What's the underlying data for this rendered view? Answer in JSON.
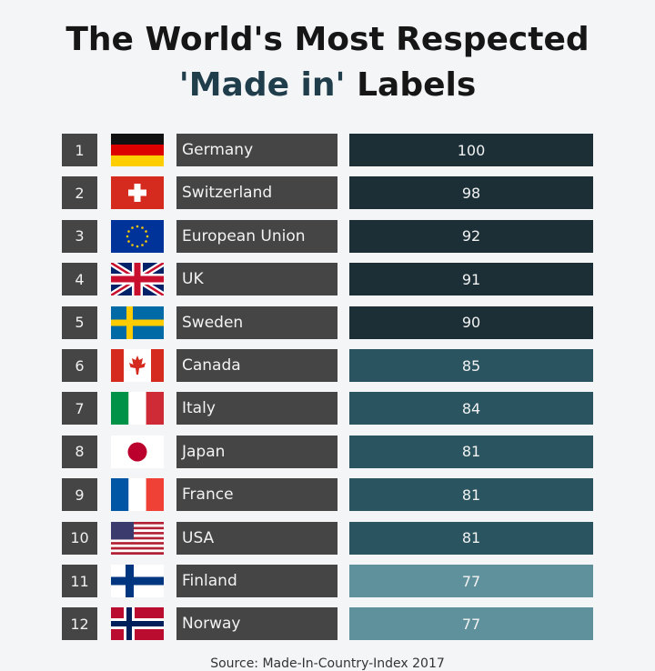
{
  "title_line1": "The World's Most Respected",
  "title_line2_accent": "'Made in'",
  "title_line2_rest": " Labels",
  "source": "Source: Made-In-Country-Index 2017",
  "colors": {
    "background": "#f4f5f7",
    "rank_box": "#454545",
    "country_box": "#454545",
    "score_high": "#1c2f37",
    "score_mid": "#2a5560",
    "score_low": "#5f919d"
  },
  "chart_data": {
    "type": "table",
    "columns": [
      "rank",
      "flag",
      "country",
      "score"
    ],
    "rows": [
      {
        "rank": "1",
        "country": "Germany",
        "score": "100",
        "flag": "germany-flag"
      },
      {
        "rank": "2",
        "country": "Switzerland",
        "score": "98",
        "flag": "switzerland-flag"
      },
      {
        "rank": "3",
        "country": "European Union",
        "score": "92",
        "flag": "eu-flag"
      },
      {
        "rank": "4",
        "country": "UK",
        "score": "91",
        "flag": "uk-flag"
      },
      {
        "rank": "5",
        "country": "Sweden",
        "score": "90",
        "flag": "sweden-flag"
      },
      {
        "rank": "6",
        "country": "Canada",
        "score": "85",
        "flag": "canada-flag"
      },
      {
        "rank": "7",
        "country": "Italy",
        "score": "84",
        "flag": "italy-flag"
      },
      {
        "rank": "8",
        "country": "Japan",
        "score": "81",
        "flag": "japan-flag"
      },
      {
        "rank": "9",
        "country": "France",
        "score": "81",
        "flag": "france-flag"
      },
      {
        "rank": "10",
        "country": "USA",
        "score": "81",
        "flag": "usa-flag"
      },
      {
        "rank": "11",
        "country": "Finland",
        "score": "77",
        "flag": "finland-flag"
      },
      {
        "rank": "12",
        "country": "Norway",
        "score": "77",
        "flag": "norway-flag"
      }
    ]
  }
}
